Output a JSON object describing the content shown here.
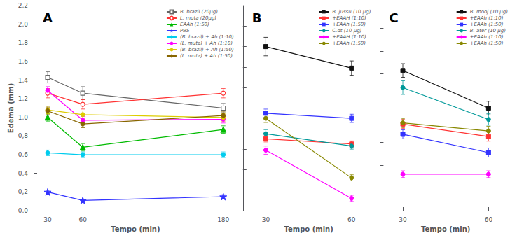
{
  "chart_data": [
    {
      "type": "line",
      "title": "A",
      "x_label": "Tempo (min)",
      "y_label": "Edema (mm)",
      "x": [
        30,
        60,
        180
      ],
      "xlim": [
        18,
        192
      ],
      "xticks": [
        30,
        60,
        180
      ],
      "ylim": [
        0.0,
        2.2
      ],
      "yticks": [
        {
          "value": 0.0,
          "label": "0,0"
        },
        {
          "value": 0.2,
          "label": "0,2"
        },
        {
          "value": 0.4,
          "label": "0,4"
        },
        {
          "value": 0.6,
          "label": "0,6"
        },
        {
          "value": 0.8,
          "label": "0,8"
        },
        {
          "value": 1.0,
          "label": "1,0"
        },
        {
          "value": 1.2,
          "label": "1,2"
        },
        {
          "value": 1.4,
          "label": "1,4"
        },
        {
          "value": 1.6,
          "label": "1,6"
        },
        {
          "value": 1.8,
          "label": "1,8"
        },
        {
          "value": 2.0,
          "label": "2,0"
        },
        {
          "value": 2.2,
          "label": "2,2"
        }
      ],
      "grid": false,
      "legend": "upper right",
      "line_style": "solid",
      "series": [
        {
          "name": "B. brazil (20μg)",
          "color": "#666666",
          "marker": "open_square",
          "values": [
            1.43,
            1.26,
            1.1
          ],
          "errors": [
            0.06,
            0.07,
            0.05
          ]
        },
        {
          "name": "L. muta (20μg)",
          "color": "#ff3333",
          "marker": "open_circle",
          "values": [
            1.26,
            1.14,
            1.26
          ],
          "errors": [
            0.05,
            0.05,
            0.05
          ]
        },
        {
          "name": "EAAh (1:50)",
          "color": "#00bb00",
          "marker": "triangle",
          "values": [
            1.0,
            0.68,
            0.87
          ],
          "errors": [
            0.04,
            0.04,
            0.04
          ]
        },
        {
          "name": "PBS",
          "color": "#3333ff",
          "marker": "star",
          "values": [
            0.2,
            0.11,
            0.15
          ],
          "errors": [
            0.02,
            0.01,
            0.02
          ]
        },
        {
          "name": "(B. brazil) + Ah (1:10)",
          "color": "#00ccee",
          "marker": "circle",
          "values": [
            0.62,
            0.6,
            0.6
          ],
          "errors": [
            0.03,
            0.03,
            0.03
          ]
        },
        {
          "name": "(L. muta) + Ah (1:10)",
          "color": "#ff00ff",
          "marker": "circle",
          "values": [
            1.29,
            0.97,
            0.98
          ],
          "errors": [
            0.04,
            0.04,
            0.04
          ]
        },
        {
          "name": "(B. brazil) + Ah (1:50)",
          "color": "#ddcc00",
          "marker": "circle",
          "values": [
            1.08,
            1.03,
            1.0
          ],
          "errors": [
            0.04,
            0.04,
            0.04
          ]
        },
        {
          "name": "(L. muta) + Ah (1:50)",
          "color": "#886600",
          "marker": "circle",
          "values": [
            1.07,
            0.93,
            1.02
          ],
          "errors": [
            0.04,
            0.04,
            0.04
          ]
        }
      ]
    },
    {
      "type": "line",
      "title": "B",
      "x_label": "Tempo (min)",
      "x": [
        30,
        60
      ],
      "xlim": [
        22,
        68
      ],
      "xticks": [
        30,
        60
      ],
      "ylim": [
        0.0,
        2.0
      ],
      "yticks": [
        0.0,
        0.2,
        0.4,
        0.6,
        0.8,
        1.0,
        1.2,
        1.4,
        1.6,
        1.8,
        2.0
      ],
      "tick_labels": "x",
      "grid": false,
      "legend": "upper right",
      "line_style": "solid",
      "series": [
        {
          "name": "B. jussu (10 μg)",
          "color": "#111111",
          "marker": "square",
          "values": [
            1.6,
            1.39
          ],
          "errors": [
            0.09,
            0.07
          ]
        },
        {
          "name": "+EAAH (1:10)",
          "color": "#ff3333",
          "marker": "square",
          "values": [
            0.7,
            0.65
          ],
          "errors": [
            0.03,
            0.03
          ]
        },
        {
          "name": "+EAAh (1:50)",
          "color": "#3333ff",
          "marker": "square",
          "values": [
            0.95,
            0.9
          ],
          "errors": [
            0.04,
            0.04
          ]
        },
        {
          "name": "C.dt (10 μg)",
          "color": "#009999",
          "marker": "circle",
          "values": [
            0.75,
            0.63
          ],
          "errors": [
            0.04,
            0.03
          ]
        },
        {
          "name": "+EAAH (1:10)",
          "color": "#ff00ff",
          "marker": "circle",
          "values": [
            0.59,
            0.12
          ],
          "errors": [
            0.04,
            0.03
          ]
        },
        {
          "name": "+EAAh (1:50)",
          "color": "#888800",
          "marker": "circle",
          "values": [
            0.9,
            0.32
          ],
          "errors": [
            0.04,
            0.03
          ]
        }
      ]
    },
    {
      "type": "line",
      "title": "C",
      "x_label": "Tempo (min)",
      "x": [
        30,
        60
      ],
      "xlim": [
        22,
        68
      ],
      "xticks": [
        30,
        60
      ],
      "ylim": [
        0.2,
        2.0
      ],
      "yticks": [
        0.2,
        0.4,
        0.6,
        0.8,
        1.0,
        1.2,
        1.4,
        1.6,
        1.8,
        2.0
      ],
      "tick_labels": "x",
      "grid": false,
      "legend": "upper right",
      "line_style": "solid",
      "series": [
        {
          "name": "B. mooj (10 μg)",
          "color": "#111111",
          "marker": "square",
          "values": [
            1.43,
            1.1
          ],
          "errors": [
            0.06,
            0.06
          ]
        },
        {
          "name": "+EAAh (1:10)",
          "color": "#ff3333",
          "marker": "square",
          "values": [
            0.96,
            0.85
          ],
          "errors": [
            0.04,
            0.04
          ]
        },
        {
          "name": "+EAAh (1:50)",
          "color": "#3333ff",
          "marker": "square",
          "values": [
            0.87,
            0.71
          ],
          "errors": [
            0.04,
            0.04
          ]
        },
        {
          "name": "B. ater (10 μg)",
          "color": "#009999",
          "marker": "circle",
          "values": [
            1.28,
            1.0
          ],
          "errors": [
            0.06,
            0.05
          ]
        },
        {
          "name": "+EAAh (1:10)",
          "color": "#ff00ff",
          "marker": "circle",
          "values": [
            0.52,
            0.52
          ],
          "errors": [
            0.03,
            0.03
          ]
        },
        {
          "name": "+EAAh (1:50)",
          "color": "#888800",
          "marker": "circle",
          "values": [
            0.97,
            0.9
          ],
          "errors": [
            0.04,
            0.04
          ]
        }
      ]
    }
  ]
}
